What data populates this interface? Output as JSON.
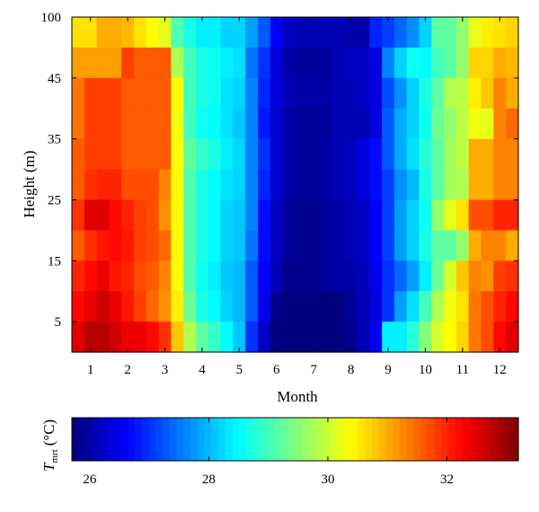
{
  "chart_data": {
    "type": "heatmap",
    "xlabel": "Month",
    "ylabel": "Height (m)",
    "x_ticks": [
      "1",
      "2",
      "3",
      "4",
      "5",
      "6",
      "7",
      "8",
      "9",
      "10",
      "11",
      "12"
    ],
    "y_ticks": [
      "5",
      "15",
      "25",
      "35",
      "45",
      "100"
    ],
    "x": [
      0.667,
      1.0,
      1.333,
      1.667,
      2.0,
      2.333,
      2.667,
      3.0,
      3.333,
      3.667,
      4.0,
      4.333,
      4.667,
      5.0,
      5.333,
      5.667,
      6.0,
      6.333,
      6.667,
      7.0,
      7.333,
      7.667,
      8.0,
      8.333,
      8.667,
      9.0,
      9.333,
      9.667,
      10.0,
      10.333,
      10.667,
      11.0,
      11.333,
      11.667,
      12.0,
      12.333
    ],
    "y": [
      2.5,
      7.5,
      12.5,
      17.5,
      22.5,
      27.5,
      32.5,
      37.5,
      42.5,
      47.5,
      52.5
    ],
    "values_rows_top_to_bottom": [
      [
        30.6,
        30.6,
        31.0,
        31.0,
        30.9,
        30.6,
        30.4,
        30.2,
        29.1,
        28.7,
        28.4,
        28.4,
        28.2,
        28.2,
        27.8,
        27.3,
        26.6,
        26.2,
        26.1,
        26.1,
        26.1,
        26.1,
        26.0,
        26.0,
        26.9,
        27.1,
        27.4,
        27.7,
        28.2,
        29.2,
        29.2,
        29.6,
        30.2,
        30.5,
        30.6,
        30.7
      ],
      [
        31.1,
        31.1,
        31.1,
        31.1,
        31.8,
        31.6,
        31.6,
        31.6,
        29.8,
        29.0,
        28.7,
        28.6,
        28.4,
        28.3,
        27.5,
        27.0,
        26.4,
        26.0,
        25.9,
        25.9,
        25.9,
        26.1,
        26.2,
        26.2,
        26.4,
        27.6,
        28.2,
        28.6,
        28.5,
        29.0,
        29.2,
        29.6,
        30.7,
        30.7,
        31.0,
        30.9
      ],
      [
        31.4,
        31.8,
        31.8,
        31.8,
        31.6,
        31.6,
        31.6,
        31.6,
        30.4,
        29.0,
        28.7,
        28.6,
        28.3,
        28.2,
        27.6,
        26.9,
        26.4,
        26.1,
        26.0,
        26.0,
        26.0,
        26.1,
        26.1,
        26.2,
        26.4,
        27.2,
        27.7,
        28.2,
        28.7,
        29.2,
        29.8,
        29.9,
        30.5,
        30.8,
        31.3,
        31.0
      ],
      [
        31.4,
        31.8,
        31.8,
        31.8,
        31.6,
        31.6,
        31.6,
        31.6,
        30.3,
        29.0,
        28.6,
        28.5,
        28.3,
        28.1,
        27.6,
        26.8,
        26.3,
        26.0,
        25.9,
        25.9,
        25.9,
        26.1,
        26.1,
        26.1,
        26.4,
        27.3,
        27.9,
        28.2,
        28.6,
        29.3,
        29.6,
        29.9,
        30.3,
        30.2,
        31.3,
        31.5
      ],
      [
        31.6,
        31.8,
        31.8,
        31.8,
        31.6,
        31.6,
        31.6,
        31.6,
        30.4,
        29.2,
        28.9,
        28.7,
        28.4,
        28.2,
        27.6,
        27.0,
        26.3,
        26.0,
        25.9,
        25.9,
        26.0,
        26.1,
        26.2,
        26.4,
        26.7,
        27.3,
        27.9,
        28.3,
        28.8,
        29.2,
        29.7,
        29.9,
        31.0,
        31.0,
        31.3,
        31.3
      ],
      [
        31.6,
        31.9,
        32.0,
        32.0,
        31.7,
        31.7,
        31.7,
        31.3,
        30.4,
        29.1,
        28.7,
        28.5,
        28.3,
        28.2,
        27.6,
        26.9,
        26.3,
        26.0,
        25.9,
        25.9,
        26.0,
        26.1,
        26.2,
        26.4,
        26.7,
        27.1,
        27.7,
        28.0,
        28.7,
        29.2,
        29.7,
        29.8,
        31.0,
        31.0,
        31.3,
        31.3
      ],
      [
        31.9,
        32.5,
        32.5,
        32.2,
        32.0,
        31.8,
        31.7,
        31.2,
        30.4,
        29.1,
        28.7,
        28.5,
        28.2,
        28.1,
        27.6,
        26.7,
        26.2,
        25.9,
        25.8,
        25.8,
        25.9,
        26.0,
        26.1,
        26.2,
        26.6,
        27.1,
        27.8,
        28.2,
        28.6,
        29.6,
        30.2,
        30.6,
        31.7,
        31.7,
        32.0,
        32.0
      ],
      [
        31.6,
        31.9,
        32.1,
        32.2,
        32.1,
        31.8,
        31.7,
        31.5,
        30.4,
        29.1,
        28.7,
        28.5,
        28.2,
        28.1,
        27.5,
        26.7,
        26.2,
        25.9,
        25.8,
        25.8,
        25.9,
        26.0,
        26.1,
        26.2,
        26.6,
        27.1,
        27.8,
        28.2,
        28.7,
        29.2,
        29.2,
        29.6,
        31.0,
        31.3,
        31.3,
        31.0
      ],
      [
        32.0,
        32.2,
        32.4,
        32.1,
        32.0,
        31.7,
        31.6,
        31.3,
        30.4,
        29.1,
        28.6,
        28.4,
        28.1,
        28.0,
        27.3,
        26.6,
        26.1,
        25.8,
        25.8,
        25.8,
        25.9,
        26.0,
        26.0,
        26.1,
        26.5,
        27.0,
        27.4,
        27.8,
        28.4,
        29.3,
        30.1,
        30.8,
        31.3,
        31.2,
        31.8,
        31.9
      ],
      [
        32.2,
        32.4,
        32.6,
        32.4,
        32.1,
        31.8,
        31.5,
        31.2,
        30.5,
        29.3,
        28.7,
        28.5,
        28.2,
        28.0,
        27.3,
        26.5,
        25.8,
        25.6,
        25.6,
        25.5,
        25.6,
        25.7,
        25.9,
        26.1,
        26.4,
        27.0,
        27.8,
        28.3,
        29.0,
        29.8,
        30.3,
        30.6,
        31.4,
        31.7,
        32.0,
        32.2
      ],
      [
        32.5,
        32.8,
        32.8,
        32.6,
        32.4,
        32.4,
        32.2,
        31.9,
        30.8,
        29.8,
        29.2,
        28.9,
        28.5,
        28.1,
        27.0,
        26.2,
        25.6,
        25.4,
        25.3,
        25.3,
        25.4,
        25.6,
        25.8,
        26.1,
        26.5,
        28.4,
        28.4,
        28.8,
        29.5,
        30.1,
        30.4,
        30.7,
        31.4,
        31.7,
        32.2,
        32.5
      ]
    ],
    "colorbar": {
      "label": "T",
      "label_subscript": "mrt",
      "label_unit": "(°C)",
      "min": 25.7,
      "max": 33.2,
      "ticks": [
        26,
        28,
        30,
        32
      ],
      "colormap": "jet"
    }
  }
}
